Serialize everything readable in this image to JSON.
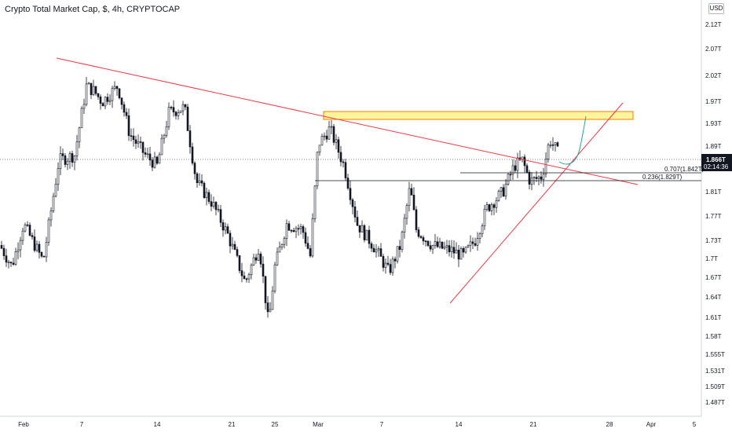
{
  "header": {
    "title": "Crypto Total Market Cap, $, 4h, CRYPTOCAP",
    "currency": "USD"
  },
  "chart_data": {
    "type": "candlestick",
    "title": "Crypto Total Market Cap, $, 4h, CRYPTOCAP",
    "y_ticks": [
      "2.12T",
      "2.07T",
      "2.02T",
      "1.97T",
      "1.93T",
      "1.89T",
      "1.81T",
      "1.77T",
      "1.73T",
      "1.7T",
      "1.67T",
      "1.64T",
      "1.61T",
      "1.58T",
      "1.555T",
      "1.531T",
      "1.509T",
      "1.487T"
    ],
    "x_ticks": [
      "Feb",
      "7",
      "14",
      "21",
      "25",
      "Mar",
      "7",
      "14",
      "21",
      "28",
      "Apr",
      "5"
    ],
    "price_label": {
      "value": "1.866T",
      "countdown": "02:14:36"
    },
    "fib_levels": [
      {
        "label": "0.707(1.842T)",
        "value": 1.842
      },
      {
        "label": "0.236(1.829T)",
        "value": 1.829
      }
    ],
    "resistance_zone": {
      "from": 1.93,
      "to": 1.95
    },
    "series_color_up": "#131722",
    "accent_colors": {
      "trendline": "#f23645",
      "zone_fill": "#fff59d",
      "zone_border": "#f57c00",
      "projection": "#26a69a"
    }
  }
}
